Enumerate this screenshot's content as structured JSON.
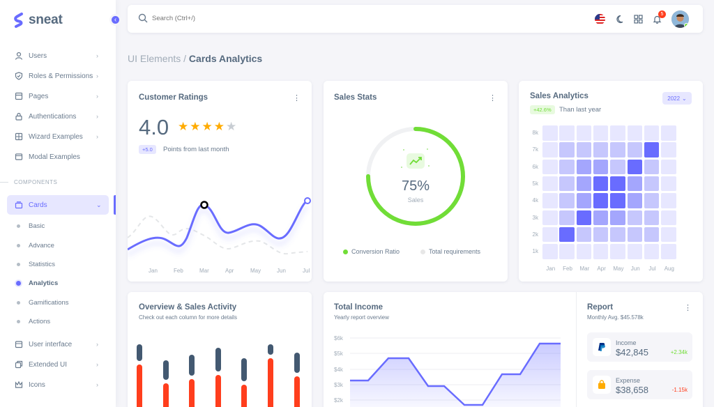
{
  "brand": {
    "name": "sneat",
    "accent": "#696cff"
  },
  "sidebar": {
    "items": [
      {
        "label": "Users",
        "icon": "user-icon"
      },
      {
        "label": "Roles & Permissions",
        "icon": "shield-check-icon"
      },
      {
        "label": "Pages",
        "icon": "page-icon"
      },
      {
        "label": "Authentications",
        "icon": "lock-icon"
      },
      {
        "label": "Wizard Examples",
        "icon": "spreadsheet-icon"
      },
      {
        "label": "Modal Examples",
        "icon": "window-icon"
      }
    ],
    "section_header": "COMPONENTS",
    "cards": {
      "label": "Cards",
      "icon": "collection-icon"
    },
    "sub_items": [
      "Basic",
      "Advance",
      "Statistics",
      "Analytics",
      "Gamifications",
      "Actions"
    ],
    "active_sub": "Analytics",
    "bottom_items": [
      {
        "label": "User interface",
        "icon": "box-icon"
      },
      {
        "label": "Extended UI",
        "icon": "copy-icon"
      },
      {
        "label": "Icons",
        "icon": "crown-icon"
      }
    ]
  },
  "navbar": {
    "search_placeholder": "Search (Ctrl+/)",
    "notification_count": "5"
  },
  "breadcrumb": {
    "parent": "UI Elements /",
    "current": "Cards Analytics"
  },
  "customer_ratings": {
    "title": "Customer Ratings",
    "rating": "4.0",
    "stars_filled": 4,
    "stars_total": 5,
    "change_badge": "+5.0",
    "change_text": "Points from last month",
    "months": [
      "Jan",
      "Feb",
      "Mar",
      "Apr",
      "May",
      "Jun",
      "Jul"
    ]
  },
  "sales_stats": {
    "title": "Sales Stats",
    "percent": "75%",
    "percent_value": 75,
    "label": "Sales",
    "legend": [
      {
        "label": "Conversion Ratio",
        "color": "#71dd37"
      },
      {
        "label": "Total requirements",
        "color": "#e7e7e7"
      }
    ]
  },
  "sales_analytics": {
    "title": "Sales Analytics",
    "change_badge": "+42.6%",
    "change_text": "Than last year",
    "year": "2022",
    "y_labels": [
      "8k",
      "7k",
      "6k",
      "5k",
      "4k",
      "3k",
      "2k",
      "1k"
    ],
    "months": [
      "Jan",
      "Feb",
      "Mar",
      "Apr",
      "May",
      "Jun",
      "Jul",
      "Aug"
    ]
  },
  "overview": {
    "title": "Overview & Sales Activity",
    "subtitle": "Check out each column for more details"
  },
  "total_income": {
    "title": "Total Income",
    "subtitle": "Yearly report overview",
    "y_labels": [
      "$6k",
      "$5k",
      "$4k",
      "$3k",
      "$2k"
    ]
  },
  "report": {
    "title": "Report",
    "subtitle": "Monthly Avg. $45.578k",
    "rows": [
      {
        "label": "Income",
        "value": "$42,845",
        "change": "+2.34k",
        "color": "#71dd37",
        "icon": "paypal-icon"
      },
      {
        "label": "Expense",
        "value": "$38,658",
        "change": "-1.15k",
        "color": "#ff3e1d",
        "icon": "shopping-bag-icon"
      }
    ]
  }
}
